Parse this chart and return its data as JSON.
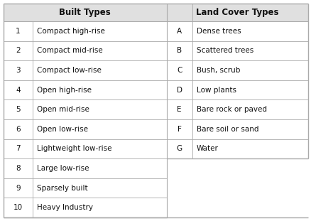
{
  "built_numbers": [
    "1",
    "2",
    "3",
    "4",
    "5",
    "6",
    "7",
    "8",
    "9",
    "10"
  ],
  "built_labels": [
    "Compact high-rise",
    "Compact mid-rise",
    "Compact low-rise",
    "Open high-rise",
    "Open mid-rise",
    "Open low-rise",
    "Lightweight low-rise",
    "Large low-rise",
    "Sparsely built",
    "Heavy Industry"
  ],
  "land_letters": [
    "A",
    "B",
    "C",
    "D",
    "E",
    "F",
    "G"
  ],
  "land_labels": [
    "Dense trees",
    "Scattered trees",
    "Bush, scrub",
    "Low plants",
    "Bare rock or paved",
    "Bare soil or sand",
    "Water"
  ],
  "header_built": "Built Types",
  "header_land": "Land Cover Types",
  "bg_color": "#ffffff",
  "header_bg": "#e0e0e0",
  "line_color": "#aaaaaa",
  "text_color": "#111111",
  "header_fontsize": 8.5,
  "cell_fontsize": 7.5,
  "fig_width": 4.39,
  "fig_height": 3.11,
  "dpi": 100
}
